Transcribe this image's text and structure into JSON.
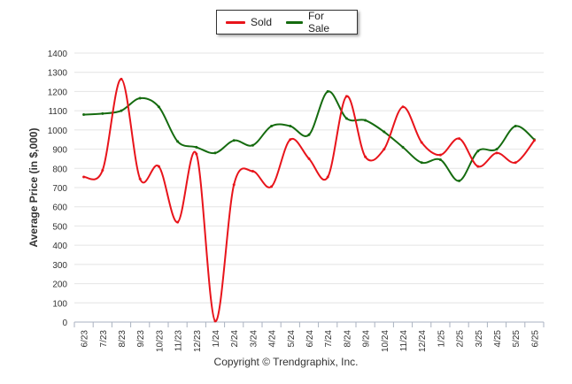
{
  "chart_data": {
    "type": "line",
    "ylabel": "Average Price (in $,000)",
    "xlabel": "",
    "ylim": [
      0,
      1400
    ],
    "yticks": [
      0,
      100,
      200,
      300,
      400,
      500,
      600,
      700,
      800,
      900,
      1000,
      1100,
      1200,
      1300,
      1400
    ],
    "grid": true,
    "legend_position": "top-center",
    "categories": [
      "6/23",
      "7/23",
      "8/23",
      "9/23",
      "10/23",
      "11/23",
      "12/23",
      "1/24",
      "2/24",
      "3/24",
      "4/24",
      "5/24",
      "6/24",
      "7/24",
      "8/24",
      "9/24",
      "10/24",
      "11/24",
      "12/24",
      "1/25",
      "2/25",
      "3/25",
      "4/25",
      "5/25",
      "6/25"
    ],
    "series": [
      {
        "name": "Sold",
        "color": "#e8141b",
        "values": [
          755,
          790,
          1265,
          745,
          810,
          520,
          875,
          5,
          715,
          785,
          705,
          950,
          850,
          755,
          1175,
          860,
          900,
          1120,
          935,
          870,
          955,
          810,
          880,
          830,
          945
        ]
      },
      {
        "name": "For Sale",
        "color": "#156b0f",
        "values": [
          1080,
          1085,
          1100,
          1165,
          1120,
          940,
          910,
          880,
          945,
          920,
          1020,
          1020,
          975,
          1200,
          1060,
          1050,
          990,
          910,
          830,
          845,
          735,
          890,
          900,
          1020,
          950
        ]
      }
    ]
  },
  "legend": {
    "items": [
      {
        "label": "Sold",
        "color": "#e8141b"
      },
      {
        "label": "For Sale",
        "color": "#156b0f"
      }
    ]
  },
  "footer": {
    "copyright": "Copyright © Trendgraphix, Inc."
  }
}
